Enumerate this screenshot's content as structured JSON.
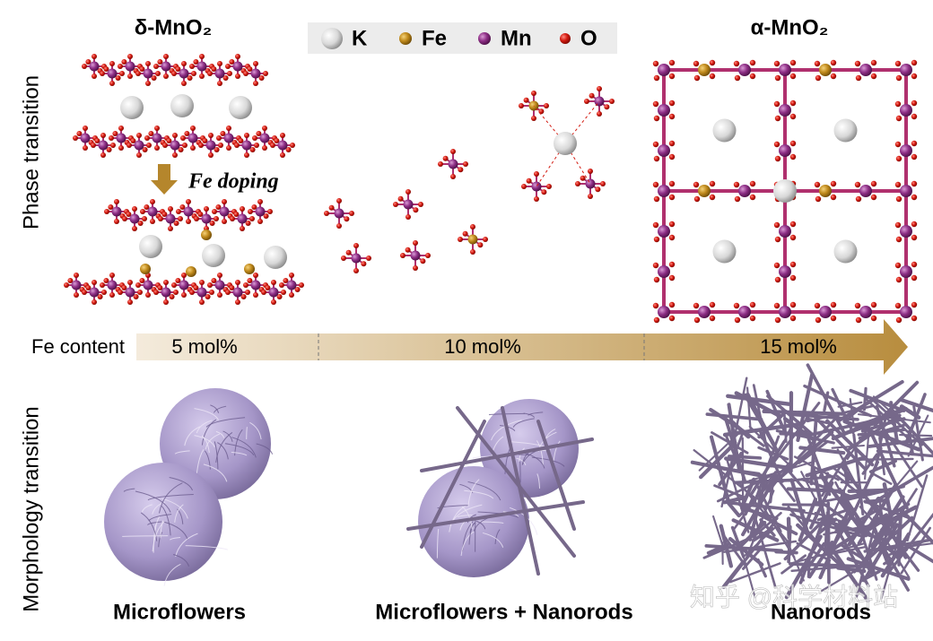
{
  "header": {
    "left_phase": "δ-MnO₂",
    "right_phase": "α-MnO₂"
  },
  "legend": {
    "items": [
      {
        "label": "K"
      },
      {
        "label": "Fe"
      },
      {
        "label": "Mn"
      },
      {
        "label": "O"
      }
    ]
  },
  "annotations": {
    "doping": "Fe doping"
  },
  "axis_labels": {
    "phase": "Phase transition",
    "morphology": "Morphology transition"
  },
  "fe_content": {
    "label": "Fe content",
    "levels": [
      "5 mol%",
      "10 mol%",
      "15 mol%"
    ]
  },
  "morphologies": [
    "Microflowers",
    "Microflowers + Nanorods",
    "Nanorods"
  ],
  "watermark": "知乎 @科学材料站"
}
